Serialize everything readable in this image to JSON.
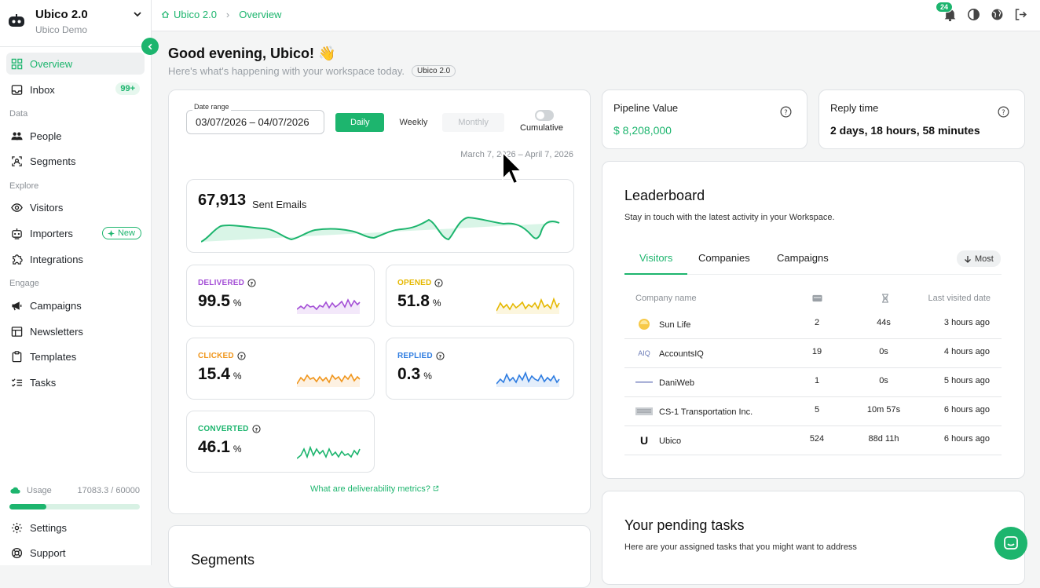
{
  "workspace": {
    "title": "Ubico 2.0",
    "subtitle": "Ubico Demo"
  },
  "nav": {
    "overview": "Overview",
    "inbox": "Inbox",
    "inbox_badge": "99+",
    "section_data": "Data",
    "people": "People",
    "segments": "Segments",
    "section_explore": "Explore",
    "visitors": "Visitors",
    "importers": "Importers",
    "importers_badge": "New",
    "integrations": "Integrations",
    "section_engage": "Engage",
    "campaigns": "Campaigns",
    "newsletters": "Newsletters",
    "templates": "Templates",
    "tasks": "Tasks",
    "settings": "Settings",
    "support": "Support"
  },
  "usage": {
    "label": "Usage",
    "value": "17083.3 / 60000",
    "used": 17083.3,
    "total": 60000
  },
  "breadcrumb": {
    "root": "Ubico 2.0",
    "current": "Overview"
  },
  "topbar": {
    "notifications": "24"
  },
  "header": {
    "greeting": "Good evening, Ubico! 👋",
    "subtitle": "Here's what's happening with your workspace today.",
    "pill": "Ubico 2.0"
  },
  "filters": {
    "date_label": "Date range",
    "date_value": "03/07/2026 – 04/07/2026",
    "daily": "Daily",
    "weekly": "Weekly",
    "monthly": "Monthly",
    "cumulative": "Cumulative",
    "range_text": "March 7, 2026 – April 7, 2026"
  },
  "sent": {
    "value": "67,913",
    "label": "Sent Emails",
    "color": "#1db56e"
  },
  "metrics": {
    "delivered": {
      "name": "DELIVERED",
      "value": "99.5",
      "unit": "%",
      "color": "#a44fd6"
    },
    "opened": {
      "name": "OPENED",
      "value": "51.8",
      "unit": "%",
      "color": "#e5b800"
    },
    "clicked": {
      "name": "CLICKED",
      "value": "15.4",
      "unit": "%",
      "color": "#f0961c"
    },
    "replied": {
      "name": "REPLIED",
      "value": "0.3",
      "unit": "%",
      "color": "#2f7de1"
    },
    "converted": {
      "name": "CONVERTED",
      "value": "46.1",
      "unit": "%",
      "color": "#1db56e"
    }
  },
  "deliverability_link": "What are deliverability metrics?",
  "pipeline": {
    "title": "Pipeline Value",
    "value": "$ 8,208,000"
  },
  "reply": {
    "title": "Reply time",
    "value": "2 days, 18 hours, 58 minutes"
  },
  "leaderboard": {
    "title": "Leaderboard",
    "subtitle": "Stay in touch with the latest activity in your Workspace.",
    "tabs": [
      "Visitors",
      "Companies",
      "Campaigns"
    ],
    "sort": "Most",
    "col_company": "Company name",
    "col_last": "Last visited date",
    "rows": [
      {
        "name": "Sun Life",
        "visits": "2",
        "time": "44s",
        "last": "3 hours ago",
        "logo": ""
      },
      {
        "name": "AccountsIQ",
        "visits": "19",
        "time": "0s",
        "last": "4 hours ago",
        "logo": "AIQ"
      },
      {
        "name": "DaniWeb",
        "visits": "1",
        "time": "0s",
        "last": "5 hours ago",
        "logo": ""
      },
      {
        "name": "CS-1 Transportation Inc.",
        "visits": "5",
        "time": "10m 57s",
        "last": "6 hours ago",
        "logo": ""
      },
      {
        "name": "Ubico",
        "visits": "524",
        "time": "88d 11h",
        "last": "6 hours ago",
        "logo": "U"
      }
    ]
  },
  "tasks": {
    "title": "Your pending tasks",
    "subtitle": "Here are your assigned tasks that you might want to address"
  },
  "segments_card": {
    "title": "Segments"
  }
}
